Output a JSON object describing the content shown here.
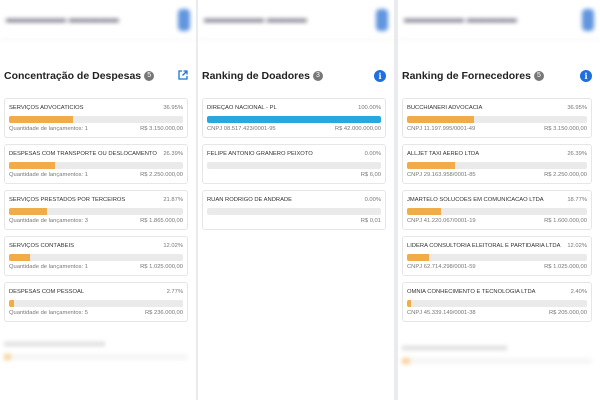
{
  "colors": {
    "accent": "#1e6fe0",
    "bar_orange": "#f0ac48",
    "bar_blue": "#29a8e0",
    "track": "#eaeaea"
  },
  "expenses": {
    "title": "Concentração de Despesas",
    "count": "5",
    "icon": "external-link-icon",
    "items": [
      {
        "name": "SERVIÇOS ADVOCATÍCIOS",
        "percent_label": "36.95%",
        "percent": 36.95,
        "subtitle": "Quantidade de lançamentos: 1",
        "amount": "R$ 3.150.000,00"
      },
      {
        "name": "DESPESAS COM TRANSPORTE OU DESLOCAMENTO",
        "percent_label": "26.39%",
        "percent": 26.39,
        "subtitle": "Quantidade de lançamentos: 1",
        "amount": "R$ 2.250.000,00"
      },
      {
        "name": "SERVIÇOS PRESTADOS POR TERCEIROS",
        "percent_label": "21.87%",
        "percent": 21.87,
        "subtitle": "Quantidade de lançamentos: 3",
        "amount": "R$ 1.865.000,00"
      },
      {
        "name": "SERVIÇOS CONTÁBEIS",
        "percent_label": "12.02%",
        "percent": 12.02,
        "subtitle": "Quantidade de lançamentos: 1",
        "amount": "R$ 1.025.000,00"
      },
      {
        "name": "DESPESAS COM PESSOAL",
        "percent_label": "2.77%",
        "percent": 2.77,
        "subtitle": "Quantidade de lançamentos: 5",
        "amount": "R$ 236.000,00"
      }
    ]
  },
  "donors": {
    "title": "Ranking de Doadores",
    "count": "3",
    "icon": "info-icon",
    "items": [
      {
        "name": "DIREÇÃO NACIONAL - PL",
        "percent_label": "100.00%",
        "percent": 100,
        "subtitle": "CNPJ 08.517.423/0001-95",
        "amount": "R$ 42.000.000,00",
        "bar_color": "blue"
      },
      {
        "name": "FELIPE ANTONIO GRANERO PEIXOTO",
        "percent_label": "0.00%",
        "percent": 0,
        "subtitle": "",
        "amount": "R$ 6,00"
      },
      {
        "name": "RUAN RODRIGO DE ANDRADE",
        "percent_label": "0.00%",
        "percent": 0,
        "subtitle": "",
        "amount": "R$ 0,01"
      }
    ]
  },
  "suppliers": {
    "title": "Ranking de Fornecedores",
    "count": "5",
    "icon": "info-icon",
    "items": [
      {
        "name": "BUCCHIANERI ADVOCACIA",
        "percent_label": "36.95%",
        "percent": 36.95,
        "subtitle": "CNPJ 11.197.995/0001-49",
        "amount": "R$ 3.150.000,00"
      },
      {
        "name": "ALLJET TAXI AEREO LTDA",
        "percent_label": "26.39%",
        "percent": 26.39,
        "subtitle": "CNPJ 29.163.958/0001-85",
        "amount": "R$ 2.250.000,00"
      },
      {
        "name": "JMARTELO SOLUCOES EM COMUNICACAO LTDA",
        "percent_label": "18.77%",
        "percent": 18.77,
        "subtitle": "CNPJ 41.220.067/0001-19",
        "amount": "R$ 1.600.000,00"
      },
      {
        "name": "LIDERA CONSULTORIA ELEITORAL E PARTIDARIA LTDA",
        "percent_label": "12.02%",
        "percent": 12.02,
        "subtitle": "CNPJ 62.714.298/0001-59",
        "amount": "R$ 1.025.000,00"
      },
      {
        "name": "OMNIA CONHECIMENTO E TECNOLOGIA LTDA",
        "percent_label": "2.40%",
        "percent": 2.4,
        "subtitle": "CNPJ 45.339.149/0001-38",
        "amount": "R$ 205.000,00"
      }
    ]
  }
}
